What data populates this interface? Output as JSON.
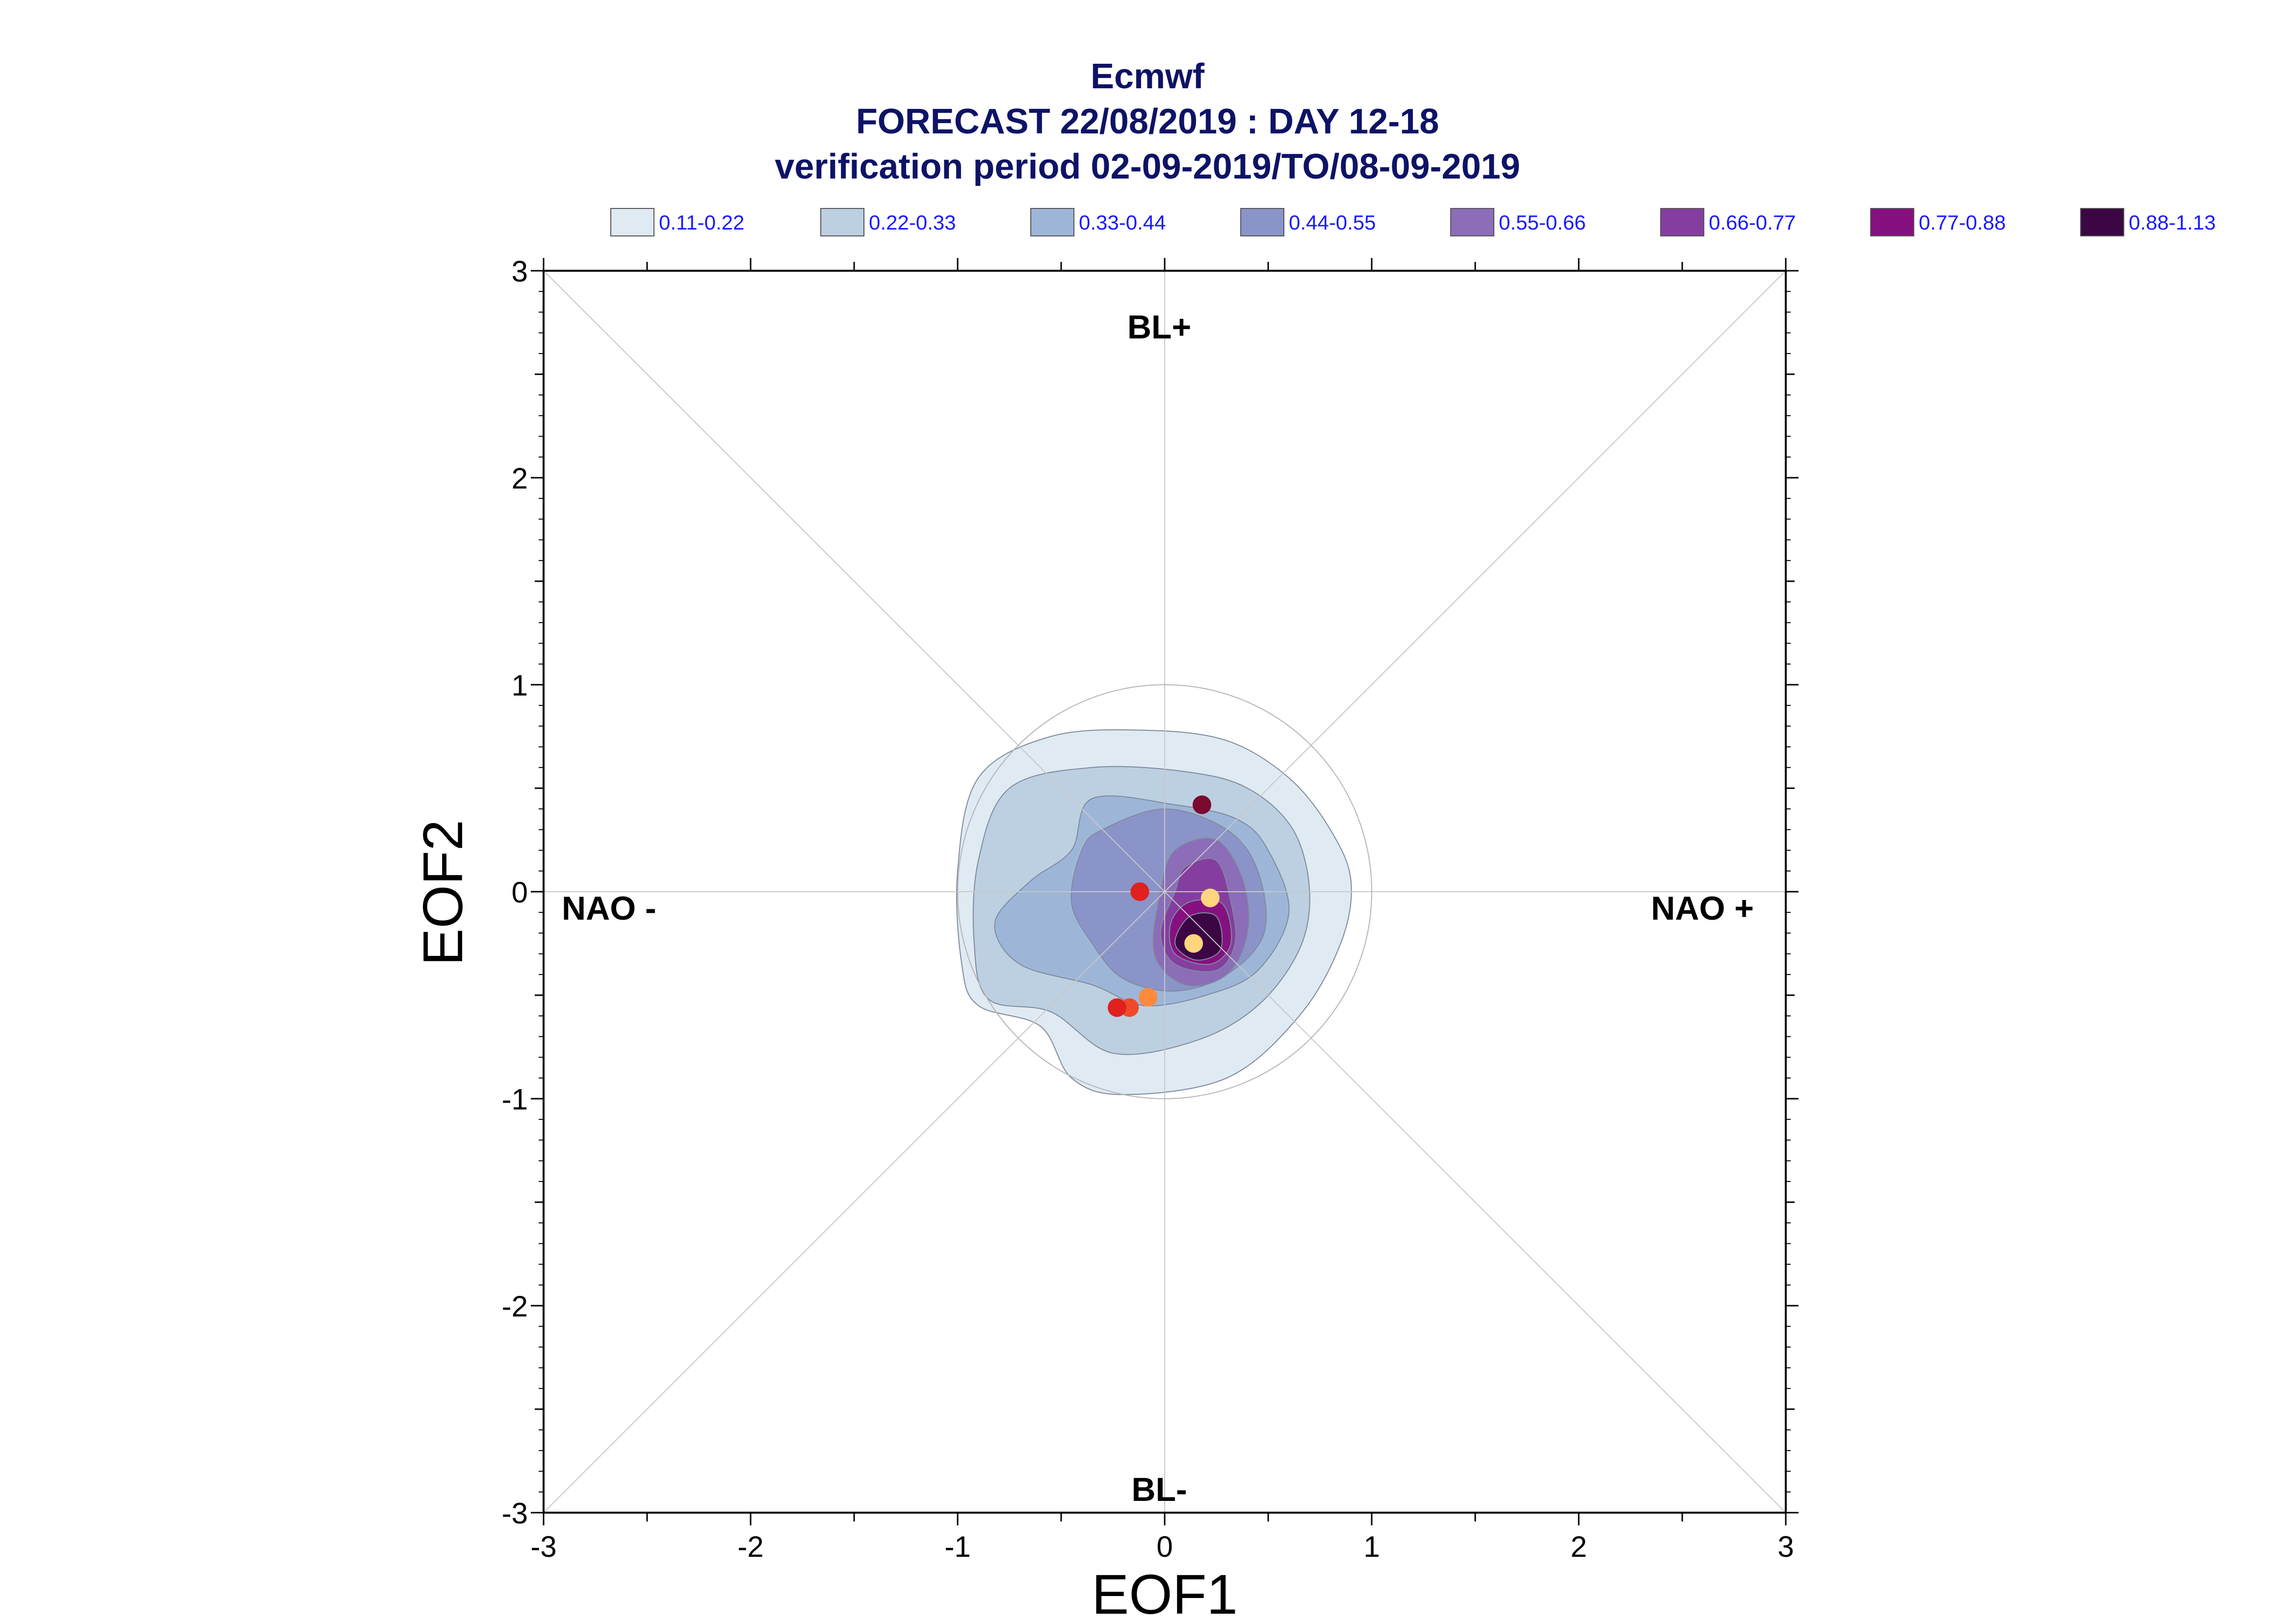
{
  "chart_data": {
    "type": "contour-density",
    "title_lines": [
      "Ecmwf",
      "FORECAST 22/08/2019 : DAY 12-18",
      "verification period 02-09-2019/TO/08-09-2019"
    ],
    "xlabel": "EOF1",
    "ylabel": "EOF2",
    "xlim": [
      -3,
      3
    ],
    "ylim": [
      -3,
      3
    ],
    "x_ticks": [
      "-3",
      "-2",
      "-1",
      "0",
      "1",
      "2",
      "3"
    ],
    "y_ticks": [
      "3",
      "2",
      "1",
      "0",
      "-1",
      "-2",
      "-3"
    ],
    "grid": false,
    "legend_position": "top",
    "legend": [
      {
        "label": "0.11-0.22",
        "color": "#dfeaf2"
      },
      {
        "label": "0.22-0.33",
        "color": "#bdd0e2"
      },
      {
        "label": "0.33-0.44",
        "color": "#9db6d8"
      },
      {
        "label": "0.44-0.55",
        "color": "#8b94c8"
      },
      {
        "label": "0.55-0.66",
        "color": "#8b6db8"
      },
      {
        "label": "0.66-0.77",
        "color": "#853ea0"
      },
      {
        "label": "0.77-0.88",
        "color": "#861080"
      },
      {
        "label": "0.88-1.13",
        "color": "#3c0645"
      }
    ],
    "regime_labels": {
      "top": "BL+",
      "bottom": "BL-",
      "left": "NAO -",
      "right": "NAO +"
    },
    "reference_circle_radius": 1.0,
    "density_levels": [
      {
        "level": 1,
        "points": [
          [
            -0.9,
            0.55
          ],
          [
            -0.55,
            0.75
          ],
          [
            -0.1,
            0.78
          ],
          [
            0.3,
            0.73
          ],
          [
            0.6,
            0.55
          ],
          [
            0.8,
            0.3
          ],
          [
            0.9,
            0.05
          ],
          [
            0.85,
            -0.25
          ],
          [
            0.65,
            -0.6
          ],
          [
            0.3,
            -0.9
          ],
          [
            -0.2,
            -0.98
          ],
          [
            -0.45,
            -0.9
          ],
          [
            -0.6,
            -0.65
          ],
          [
            -0.9,
            -0.55
          ],
          [
            -0.98,
            -0.35
          ],
          [
            -1.0,
            0.1
          ]
        ]
      },
      {
        "level": 2,
        "points": [
          [
            -0.75,
            0.5
          ],
          [
            -0.35,
            0.6
          ],
          [
            0.1,
            0.58
          ],
          [
            0.4,
            0.5
          ],
          [
            0.62,
            0.3
          ],
          [
            0.7,
            0.0
          ],
          [
            0.65,
            -0.28
          ],
          [
            0.45,
            -0.55
          ],
          [
            0.15,
            -0.72
          ],
          [
            -0.25,
            -0.78
          ],
          [
            -0.55,
            -0.58
          ],
          [
            -0.85,
            -0.52
          ],
          [
            -0.92,
            -0.25
          ],
          [
            -0.9,
            0.15
          ]
        ]
      },
      {
        "level": 3,
        "points": [
          [
            -0.35,
            0.45
          ],
          [
            0.05,
            0.42
          ],
          [
            0.35,
            0.35
          ],
          [
            0.5,
            0.2
          ],
          [
            0.6,
            -0.1
          ],
          [
            0.45,
            -0.38
          ],
          [
            0.2,
            -0.5
          ],
          [
            -0.1,
            -0.55
          ],
          [
            -0.35,
            -0.45
          ],
          [
            -0.7,
            -0.35
          ],
          [
            -0.82,
            -0.15
          ],
          [
            -0.65,
            0.05
          ],
          [
            -0.45,
            0.2
          ]
        ]
      },
      {
        "level": 4,
        "points": [
          [
            -0.3,
            0.3
          ],
          [
            0.0,
            0.4
          ],
          [
            0.3,
            0.3
          ],
          [
            0.45,
            0.1
          ],
          [
            0.48,
            -0.2
          ],
          [
            0.3,
            -0.4
          ],
          [
            0.05,
            -0.48
          ],
          [
            -0.2,
            -0.42
          ],
          [
            -0.35,
            -0.25
          ],
          [
            -0.45,
            -0.05
          ],
          [
            -0.4,
            0.2
          ]
        ]
      },
      {
        "level": 5,
        "points": [
          [
            0.05,
            0.2
          ],
          [
            0.25,
            0.25
          ],
          [
            0.38,
            0.05
          ],
          [
            0.4,
            -0.2
          ],
          [
            0.3,
            -0.4
          ],
          [
            0.1,
            -0.45
          ],
          [
            -0.05,
            -0.3
          ],
          [
            -0.02,
            0.0
          ]
        ]
      },
      {
        "level": 6,
        "points": [
          [
            0.1,
            0.12
          ],
          [
            0.25,
            0.15
          ],
          [
            0.32,
            -0.05
          ],
          [
            0.34,
            -0.25
          ],
          [
            0.25,
            -0.38
          ],
          [
            0.05,
            -0.35
          ],
          [
            -0.02,
            -0.2
          ],
          [
            0.05,
            0.0
          ]
        ]
      },
      {
        "level": 7,
        "points": [
          [
            0.12,
            -0.05
          ],
          [
            0.28,
            -0.06
          ],
          [
            0.32,
            -0.25
          ],
          [
            0.22,
            -0.35
          ],
          [
            0.05,
            -0.3
          ],
          [
            0.03,
            -0.15
          ]
        ]
      },
      {
        "level": 8,
        "points": [
          [
            0.12,
            -0.12
          ],
          [
            0.25,
            -0.12
          ],
          [
            0.27,
            -0.28
          ],
          [
            0.15,
            -0.33
          ],
          [
            0.05,
            -0.25
          ]
        ]
      }
    ],
    "points": [
      {
        "x": 0.18,
        "y": 0.42,
        "color": "#7a0a2e"
      },
      {
        "x": -0.12,
        "y": 0.0,
        "color": "#e0211e"
      },
      {
        "x": 0.22,
        "y": -0.03,
        "color": "#ffd580"
      },
      {
        "x": 0.14,
        "y": -0.25,
        "color": "#ffd580"
      },
      {
        "x": -0.08,
        "y": -0.51,
        "color": "#ff8a3d"
      },
      {
        "x": -0.17,
        "y": -0.56,
        "color": "#ef4a2a"
      },
      {
        "x": -0.23,
        "y": -0.56,
        "color": "#e0211e"
      }
    ]
  }
}
